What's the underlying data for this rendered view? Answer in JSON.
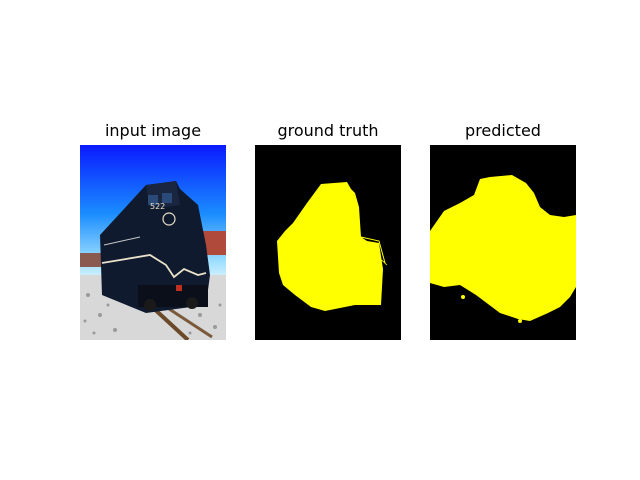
{
  "panels": [
    {
      "title": "input image"
    },
    {
      "title": "ground truth"
    },
    {
      "title": "predicted"
    }
  ],
  "locomotive_number": "522",
  "colors": {
    "background": "#ffffff",
    "mask_foreground": "#ffff00",
    "mask_background": "#000000"
  }
}
